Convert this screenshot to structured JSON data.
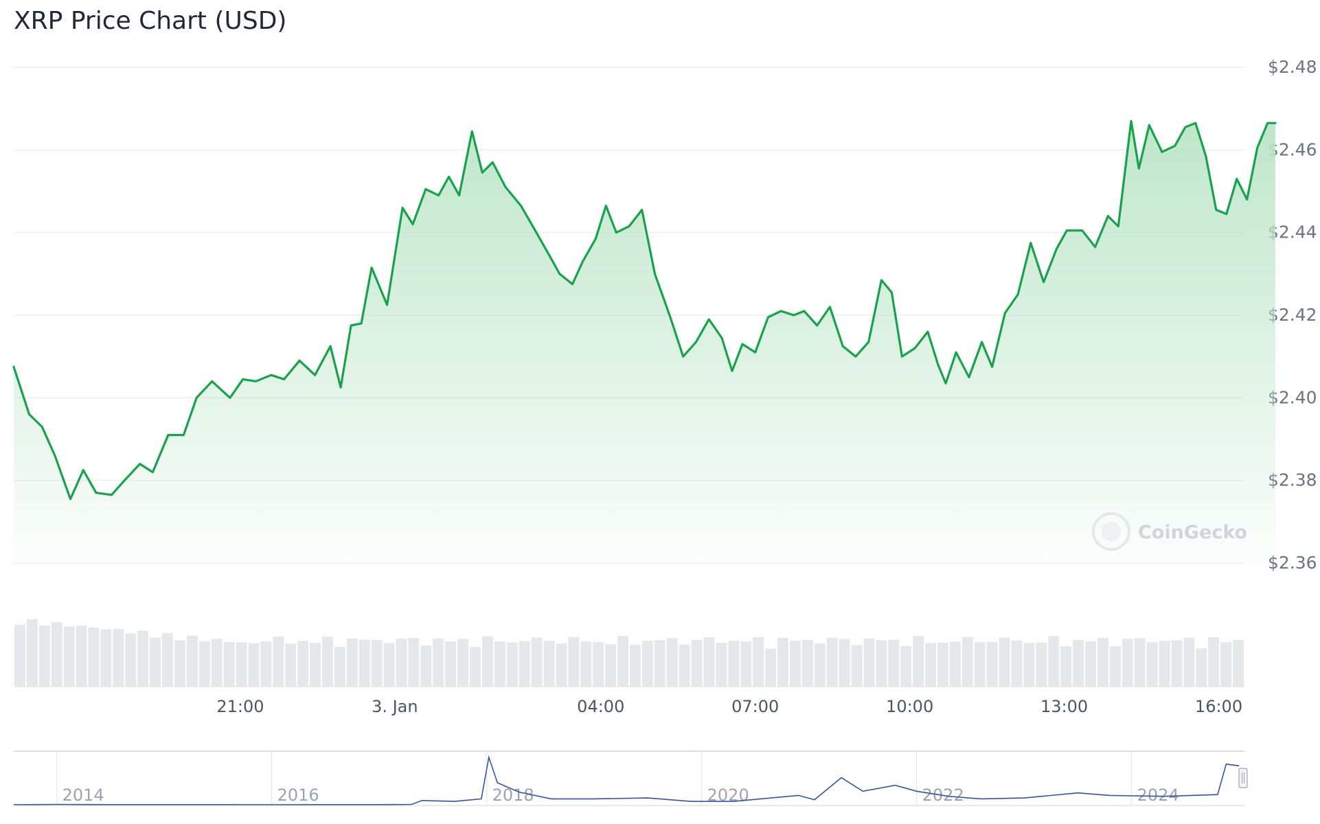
{
  "chart_data": {
    "type": "line",
    "title": "XRP Price Chart (USD)",
    "currency": "USD",
    "y_tick_labels": [
      "$2.36",
      "$2.38",
      "$2.40",
      "$2.42",
      "$2.44",
      "$2.46",
      "$2.48"
    ],
    "y_ticks": [
      2.36,
      2.38,
      2.4,
      2.42,
      2.44,
      2.46,
      2.48
    ],
    "ylim": [
      2.36,
      2.48
    ],
    "x_tick_labels": [
      "21:00",
      "3. Jan",
      "04:00",
      "07:00",
      "10:00",
      "13:00",
      "16:00"
    ],
    "x_ticks_hours": [
      21,
      24,
      28,
      31,
      34,
      37,
      40
    ],
    "xlim_hours": [
      16.6,
      40.5
    ],
    "grid": true,
    "legend": "none",
    "colors": {
      "line": "#16a34a",
      "area_top": "#bbe5c8",
      "volume": "#e5e7eb",
      "navigator_line": "#2f54a7"
    },
    "series": [
      {
        "values_by_hour": [
          [
            16.6,
            2.4075
          ],
          [
            16.9,
            2.396
          ],
          [
            17.15,
            2.393
          ],
          [
            17.4,
            2.386
          ],
          [
            17.7,
            2.3755
          ],
          [
            17.95,
            2.3825
          ],
          [
            18.2,
            2.377
          ],
          [
            18.5,
            2.3765
          ],
          [
            18.75,
            2.38
          ],
          [
            19.05,
            2.384
          ],
          [
            19.3,
            2.382
          ],
          [
            19.6,
            2.391
          ],
          [
            19.9,
            2.391
          ],
          [
            20.15,
            2.4
          ],
          [
            20.45,
            2.404
          ],
          [
            20.8,
            2.4
          ],
          [
            21.05,
            2.4045
          ],
          [
            21.3,
            2.404
          ],
          [
            21.6,
            2.4055
          ],
          [
            21.85,
            2.4045
          ],
          [
            22.15,
            2.409
          ],
          [
            22.45,
            2.4055
          ],
          [
            22.75,
            2.4125
          ],
          [
            22.95,
            2.4025
          ],
          [
            23.15,
            2.4175
          ],
          [
            23.35,
            2.418
          ],
          [
            23.55,
            2.4315
          ],
          [
            23.85,
            2.4225
          ],
          [
            24.15,
            2.446
          ],
          [
            24.35,
            2.442
          ],
          [
            24.6,
            2.4505
          ],
          [
            24.85,
            2.449
          ],
          [
            25.05,
            2.4535
          ],
          [
            25.25,
            2.449
          ],
          [
            25.5,
            2.4645
          ],
          [
            25.7,
            2.4545
          ],
          [
            25.9,
            2.457
          ],
          [
            26.15,
            2.451
          ],
          [
            26.45,
            2.4465
          ],
          [
            26.75,
            2.44
          ],
          [
            27.0,
            2.4345
          ],
          [
            27.2,
            2.43
          ],
          [
            27.45,
            2.4275
          ],
          [
            27.65,
            2.433
          ],
          [
            27.9,
            2.4385
          ],
          [
            28.1,
            2.4465
          ],
          [
            28.3,
            2.44
          ],
          [
            28.55,
            2.4415
          ],
          [
            28.8,
            2.4455
          ],
          [
            29.05,
            2.43
          ],
          [
            29.35,
            2.4195
          ],
          [
            29.6,
            2.41
          ],
          [
            29.85,
            2.4135
          ],
          [
            30.1,
            2.419
          ],
          [
            30.35,
            2.4145
          ],
          [
            30.55,
            2.4065
          ],
          [
            30.75,
            2.413
          ],
          [
            31.0,
            2.411
          ],
          [
            31.25,
            2.4195
          ],
          [
            31.5,
            2.421
          ],
          [
            31.75,
            2.42
          ],
          [
            31.95,
            2.421
          ],
          [
            32.2,
            2.4175
          ],
          [
            32.45,
            2.422
          ],
          [
            32.7,
            2.4125
          ],
          [
            32.95,
            2.41
          ],
          [
            33.2,
            2.4135
          ],
          [
            33.45,
            2.4285
          ],
          [
            33.65,
            2.4255
          ],
          [
            33.85,
            2.41
          ],
          [
            34.1,
            2.412
          ],
          [
            34.35,
            2.416
          ],
          [
            34.55,
            2.408
          ],
          [
            34.7,
            2.4035
          ],
          [
            34.9,
            2.411
          ],
          [
            35.15,
            2.405
          ],
          [
            35.4,
            2.4135
          ],
          [
            35.6,
            2.4075
          ],
          [
            35.85,
            2.4205
          ],
          [
            36.1,
            2.425
          ],
          [
            36.35,
            2.4375
          ],
          [
            36.6,
            2.428
          ],
          [
            36.85,
            2.436
          ],
          [
            37.05,
            2.4405
          ],
          [
            37.35,
            2.4405
          ],
          [
            37.6,
            2.4365
          ],
          [
            37.85,
            2.444
          ],
          [
            38.05,
            2.4415
          ],
          [
            38.3,
            2.467
          ],
          [
            38.45,
            2.4555
          ],
          [
            38.65,
            2.466
          ],
          [
            38.9,
            2.4595
          ],
          [
            39.15,
            2.461
          ],
          [
            39.35,
            2.4655
          ],
          [
            39.55,
            2.4665
          ],
          [
            39.75,
            2.4585
          ],
          [
            39.95,
            2.4455
          ],
          [
            40.15,
            2.4445
          ],
          [
            40.35,
            2.453
          ],
          [
            40.55,
            2.448
          ],
          [
            40.75,
            2.4605
          ],
          [
            40.95,
            2.4665
          ],
          [
            41.1,
            2.4665
          ]
        ]
      }
    ],
    "volume_bars": 100,
    "watermark": "CoinGecko",
    "navigator": {
      "year_labels": [
        "2014",
        "2016",
        "2018",
        "2020",
        "2022",
        "2024"
      ],
      "years": [
        2014,
        2016,
        2018,
        2020,
        2022,
        2024
      ],
      "range": [
        2013.6,
        2025.05
      ],
      "values": [
        [
          2013.6,
          0.005
        ],
        [
          2014.0,
          0.02
        ],
        [
          2014.5,
          0.01
        ],
        [
          2015.0,
          0.01
        ],
        [
          2015.5,
          0.008
        ],
        [
          2016.0,
          0.006
        ],
        [
          2016.5,
          0.007
        ],
        [
          2017.0,
          0.007
        ],
        [
          2017.3,
          0.02
        ],
        [
          2017.4,
          0.25
        ],
        [
          2017.7,
          0.2
        ],
        [
          2017.95,
          0.35
        ],
        [
          2018.02,
          2.8
        ],
        [
          2018.1,
          1.3
        ],
        [
          2018.3,
          0.75
        ],
        [
          2018.6,
          0.35
        ],
        [
          2019.0,
          0.35
        ],
        [
          2019.5,
          0.4
        ],
        [
          2019.9,
          0.2
        ],
        [
          2020.3,
          0.2
        ],
        [
          2020.9,
          0.55
        ],
        [
          2021.05,
          0.3
        ],
        [
          2021.3,
          1.6
        ],
        [
          2021.5,
          0.8
        ],
        [
          2021.8,
          1.15
        ],
        [
          2022.0,
          0.8
        ],
        [
          2022.3,
          0.5
        ],
        [
          2022.6,
          0.35
        ],
        [
          2023.0,
          0.4
        ],
        [
          2023.5,
          0.7
        ],
        [
          2023.8,
          0.55
        ],
        [
          2024.3,
          0.5
        ],
        [
          2024.8,
          0.6
        ],
        [
          2024.88,
          2.4
        ],
        [
          2025.0,
          2.3
        ]
      ]
    }
  }
}
